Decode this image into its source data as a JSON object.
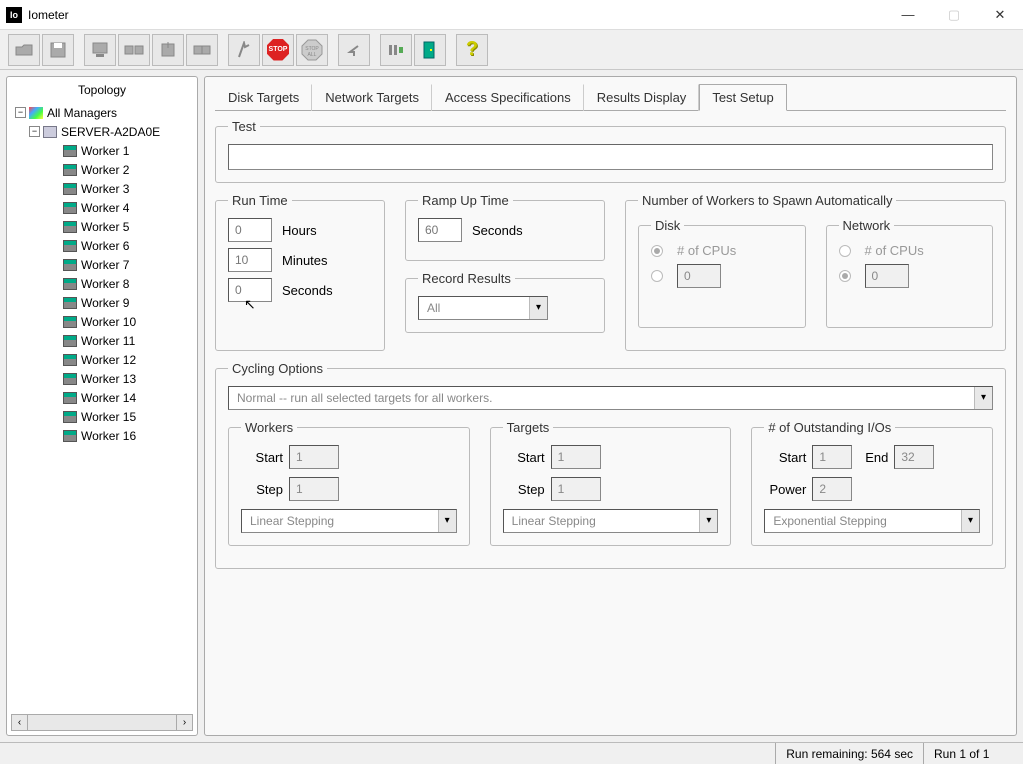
{
  "app": {
    "icon_text": "Io",
    "title": "Iometer"
  },
  "window_controls": {
    "minimize": "—",
    "maximize": "▢",
    "close": "✕"
  },
  "toolbar": [
    "open",
    "save",
    "sep",
    "computer",
    "wide",
    "target",
    "copy",
    "sep",
    "flag",
    "stop",
    "stopall",
    "sep",
    "undo",
    "sep",
    "slide",
    "door",
    "sep",
    "help"
  ],
  "topology": {
    "header": "Topology",
    "root": "All Managers",
    "server": "SERVER-A2DA0E",
    "workers": [
      "Worker 1",
      "Worker 2",
      "Worker 3",
      "Worker 4",
      "Worker 5",
      "Worker 6",
      "Worker 7",
      "Worker 8",
      "Worker 9",
      "Worker 10",
      "Worker 11",
      "Worker 12",
      "Worker 13",
      "Worker 14",
      "Worker 15",
      "Worker 16"
    ]
  },
  "tabs": {
    "items": [
      "Disk Targets",
      "Network Targets",
      "Access Specifications",
      "Results Display",
      "Test Setup"
    ],
    "active": 4
  },
  "test": {
    "legend": "Test",
    "name": ""
  },
  "run_time": {
    "legend": "Run Time",
    "hours": "0",
    "hours_label": "Hours",
    "minutes": "10",
    "minutes_label": "Minutes",
    "seconds": "0",
    "seconds_label": "Seconds"
  },
  "ramp": {
    "legend": "Ramp Up Time",
    "seconds": "60",
    "seconds_label": "Seconds"
  },
  "record": {
    "legend": "Record Results",
    "value": "All"
  },
  "spawn": {
    "legend": "Number of Workers to Spawn Automatically",
    "disk": {
      "legend": "Disk",
      "cpu_label": "# of CPUs",
      "cpu_checked": true,
      "custom_value": "0"
    },
    "network": {
      "legend": "Network",
      "cpu_label": "# of CPUs",
      "cpu_checked": false,
      "custom_value": "0",
      "custom_checked": true
    }
  },
  "cycling": {
    "legend": "Cycling Options",
    "mode": "Normal -- run all selected targets for all workers.",
    "workers": {
      "legend": "Workers",
      "start_label": "Start",
      "start": "1",
      "step_label": "Step",
      "step": "1",
      "stepping": "Linear Stepping"
    },
    "targets": {
      "legend": "Targets",
      "start_label": "Start",
      "start": "1",
      "step_label": "Step",
      "step": "1",
      "stepping": "Linear Stepping"
    },
    "ios": {
      "legend": "# of Outstanding I/Os",
      "start_label": "Start",
      "start": "1",
      "end_label": "End",
      "end": "32",
      "power_label": "Power",
      "power": "2",
      "stepping": "Exponential Stepping"
    }
  },
  "status": {
    "remaining": "Run remaining: 564 sec",
    "run": "Run 1 of 1"
  }
}
